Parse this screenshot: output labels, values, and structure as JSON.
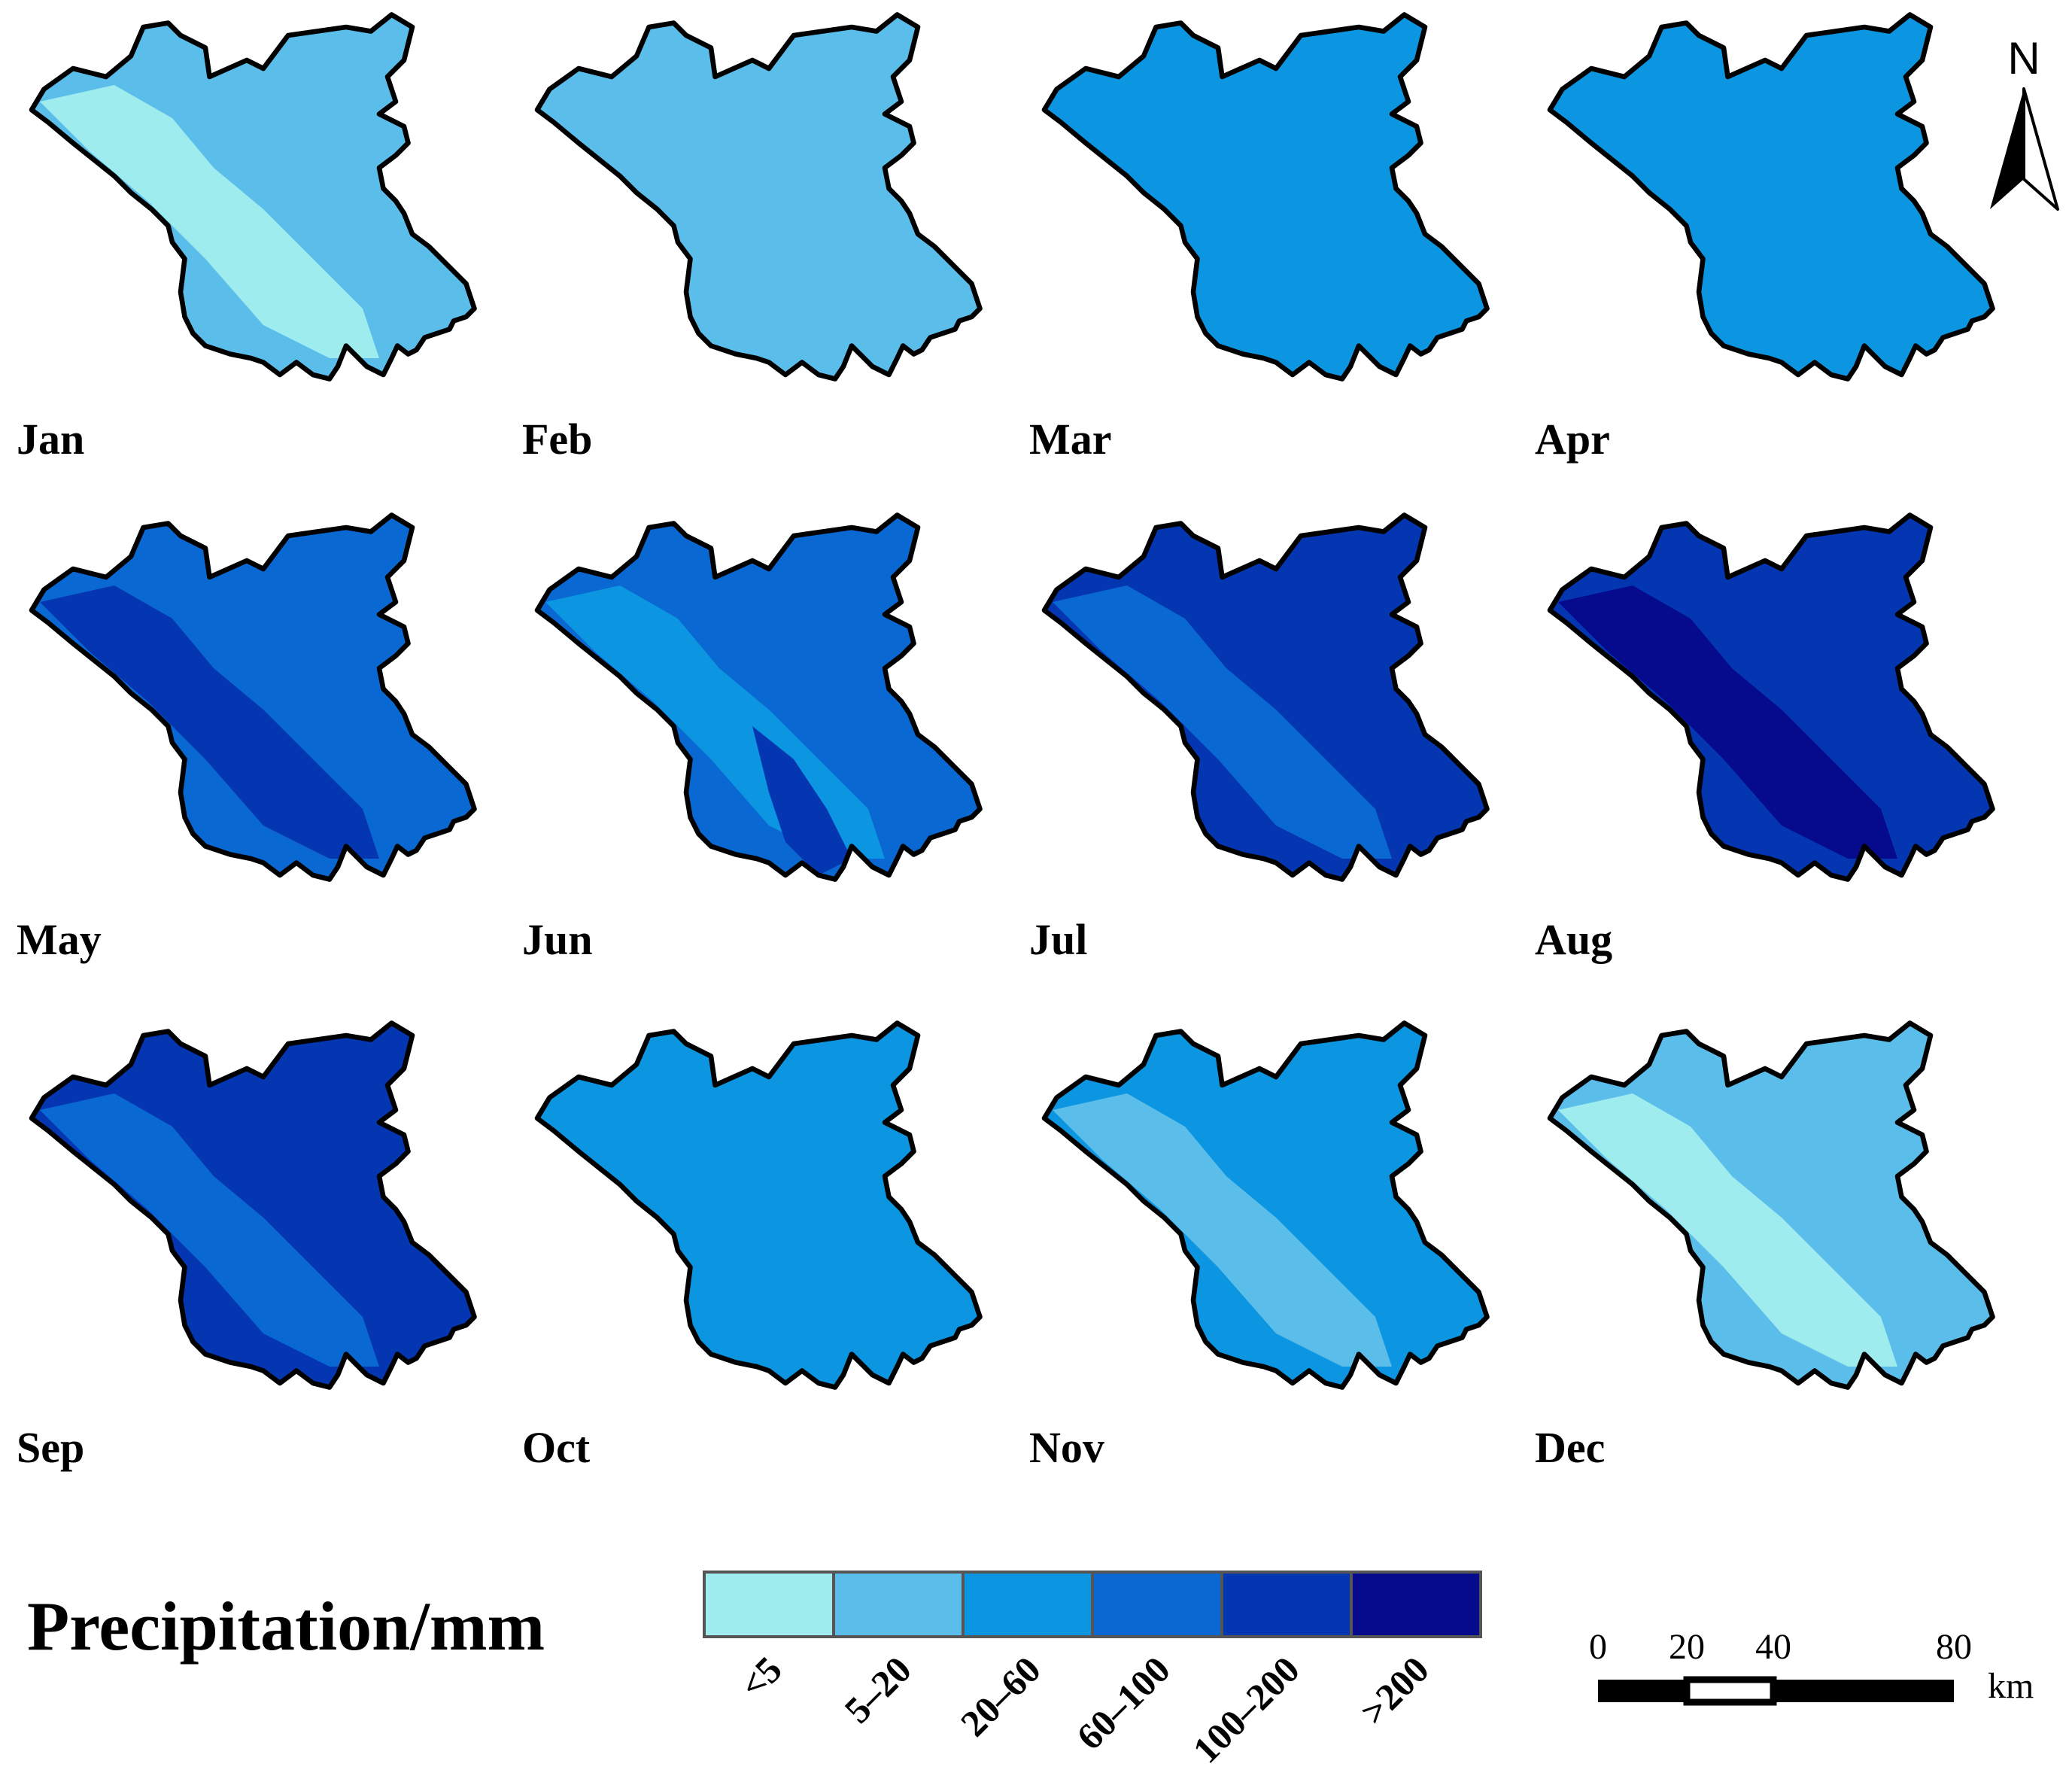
{
  "legend": {
    "title": "Precipitation/mm",
    "classes": [
      {
        "label": "<5",
        "color": "#9fecee"
      },
      {
        "label": "5–20",
        "color": "#5bbde9"
      },
      {
        "label": "20–60",
        "color": "#0c95e0"
      },
      {
        "label": "60–100",
        "color": "#0a68d3"
      },
      {
        "label": "100–200",
        "color": "#0436b2"
      },
      {
        "label": ">200",
        "color": "#050b8c"
      }
    ]
  },
  "maps": [
    {
      "month": "Jan",
      "base": "#5bbde9",
      "patches": [
        "#9fecee"
      ]
    },
    {
      "month": "Feb",
      "base": "#5bbde9",
      "patches": []
    },
    {
      "month": "Mar",
      "base": "#0c95e0",
      "patches": []
    },
    {
      "month": "Apr",
      "base": "#0c95e0",
      "patches": []
    },
    {
      "month": "May",
      "base": "#0a68d3",
      "patches": [
        "#0436b2"
      ]
    },
    {
      "month": "Jun",
      "base": "#0a68d3",
      "patches": [
        "#0c95e0",
        "#0436b2"
      ]
    },
    {
      "month": "Jul",
      "base": "#0436b2",
      "patches": [
        "#0a68d3"
      ]
    },
    {
      "month": "Aug",
      "base": "#0436b2",
      "patches": [
        "#050b8c"
      ]
    },
    {
      "month": "Sep",
      "base": "#0436b2",
      "patches": [
        "#0a68d3"
      ]
    },
    {
      "month": "Oct",
      "base": "#0c95e0",
      "patches": []
    },
    {
      "month": "Nov",
      "base": "#0c95e0",
      "patches": [
        "#5bbde9"
      ]
    },
    {
      "month": "Dec",
      "base": "#5bbde9",
      "patches": [
        "#9fecee"
      ]
    }
  ],
  "north_arrow": {
    "label": "N",
    "icon": "north-arrow-icon"
  },
  "scale_bar": {
    "ticks": [
      "0",
      "20",
      "40",
      "80"
    ],
    "unit": "km"
  }
}
